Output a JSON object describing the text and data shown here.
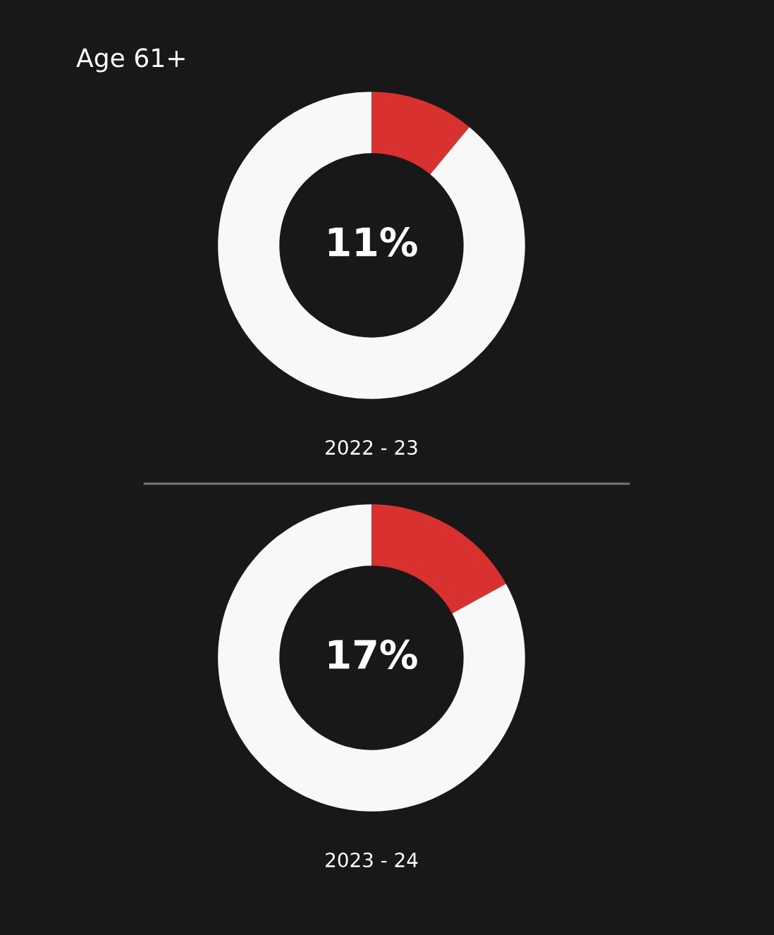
{
  "chart_data": [
    {
      "type": "donut",
      "title": "Age 61+",
      "categories": [
        null,
        null
      ],
      "values": [
        11,
        89
      ],
      "colors": [
        "#d93030",
        "#f8f8f8"
      ],
      "annotations": [
        "11%"
      ],
      "xlabel": "2022 - 23"
    },
    {
      "type": "donut",
      "categories": [
        null,
        null
      ],
      "values": [
        17,
        83
      ],
      "colors": [
        "#d93030",
        "#f8f8f8"
      ],
      "annotations": [
        "17%"
      ],
      "xlabel": "2023 - 24"
    }
  ]
}
